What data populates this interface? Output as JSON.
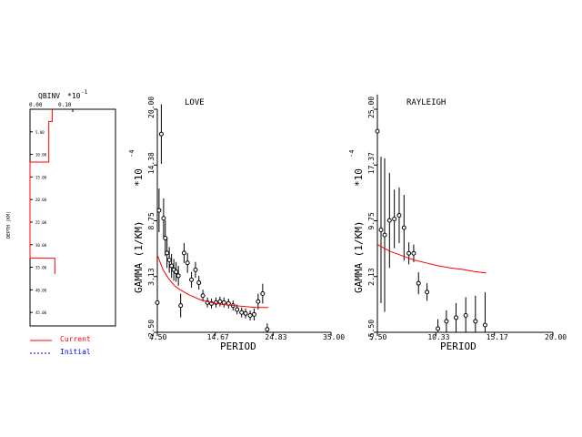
{
  "chart_data": [
    {
      "type": "line",
      "title": "QBINV",
      "scale_label": "*10",
      "scale_exp": "-1",
      "xtick_labels": [
        "0.00",
        "0.10"
      ],
      "ylabel": "DEPTH (KM)",
      "ytick_labels": [
        "5.00",
        "10.00",
        "15.00",
        "20.00",
        "25.00",
        "30.00",
        "35.00",
        "40.00",
        "45.00"
      ],
      "ylim_depth": [
        0,
        48
      ],
      "xlim": [
        0,
        0.2
      ],
      "series": [
        {
          "name": "Current",
          "color": "#ff0000",
          "points": [
            [
              0.052,
              0
            ],
            [
              0.052,
              2.7
            ],
            [
              0.044,
              2.7
            ],
            [
              0.044,
              11.7
            ],
            [
              0.0,
              11.7
            ],
            [
              0.0,
              33.0
            ],
            [
              0.058,
              33.0
            ],
            [
              0.058,
              36.5
            ]
          ]
        }
      ],
      "legend": [
        {
          "label": "Current",
          "color": "#ff0000",
          "style": "solid"
        },
        {
          "label": "Initial",
          "color": "#0000ff",
          "style": "dashed"
        }
      ]
    },
    {
      "type": "scatter",
      "title": "LOVE",
      "xlabel": "PERIOD",
      "ylabel": "GAMMA (1/KM)",
      "yscale_label": "*10",
      "yscale_exp": "-4",
      "xlim": [
        4.5,
        35.0
      ],
      "ylim": [
        -2.5,
        20.0
      ],
      "xtick_labels": [
        "4.50",
        "14.67",
        "24.83",
        "35.00"
      ],
      "ytick_labels": [
        "-2.50",
        "3.13",
        "8.75",
        "14.38",
        "20.00"
      ],
      "observed": [
        [
          4.5,
          0.5,
          1.5
        ],
        [
          4.8,
          9.8,
          2.2
        ],
        [
          5.2,
          17.5,
          3.0
        ],
        [
          5.6,
          9.0,
          2.0
        ],
        [
          5.9,
          7.0,
          1.8
        ],
        [
          6.2,
          5.5,
          1.5
        ],
        [
          6.6,
          4.8,
          1.3
        ],
        [
          7.0,
          4.2,
          1.2
        ],
        [
          7.4,
          3.8,
          1.1
        ],
        [
          7.8,
          3.6,
          1.0
        ],
        [
          8.2,
          3.2,
          1.0
        ],
        [
          8.6,
          0.2,
          1.2
        ],
        [
          9.2,
          5.5,
          1.0
        ],
        [
          9.8,
          4.5,
          1.0
        ],
        [
          10.5,
          2.8,
          0.8
        ],
        [
          11.2,
          3.8,
          0.8
        ],
        [
          11.8,
          2.5,
          0.7
        ],
        [
          12.5,
          1.2,
          0.6
        ],
        [
          13.3,
          0.5,
          0.5
        ],
        [
          14.0,
          0.4,
          0.5
        ],
        [
          14.8,
          0.5,
          0.5
        ],
        [
          15.5,
          0.6,
          0.5
        ],
        [
          16.2,
          0.5,
          0.5
        ],
        [
          17.0,
          0.4,
          0.5
        ],
        [
          17.8,
          0.2,
          0.5
        ],
        [
          18.5,
          -0.2,
          0.5
        ],
        [
          19.3,
          -0.5,
          0.5
        ],
        [
          20.0,
          -0.6,
          0.5
        ],
        [
          20.8,
          -0.8,
          0.5
        ],
        [
          21.5,
          -0.7,
          0.6
        ],
        [
          22.2,
          0.6,
          0.8
        ],
        [
          23.0,
          1.4,
          1.0
        ],
        [
          23.8,
          -2.2,
          0.6
        ]
      ],
      "predicted": [
        [
          4.5,
          5.3
        ],
        [
          5.5,
          3.8
        ],
        [
          6.5,
          2.9
        ],
        [
          7.5,
          2.2
        ],
        [
          8.5,
          1.8
        ],
        [
          10.0,
          1.3
        ],
        [
          12.0,
          0.8
        ],
        [
          14.0,
          0.5
        ],
        [
          16.0,
          0.3
        ],
        [
          18.0,
          0.2
        ],
        [
          20.0,
          0.1
        ],
        [
          22.0,
          0.0
        ],
        [
          24.0,
          0.0
        ]
      ]
    },
    {
      "type": "scatter",
      "title": "RAYLEIGH",
      "xlabel": "PERIOD",
      "ylabel": "GAMMA (1/KM)",
      "yscale_label": "*10",
      "yscale_exp": "-4",
      "xlim": [
        5.5,
        20.0
      ],
      "ylim": [
        -5.5,
        25.0
      ],
      "xtick_labels": [
        "5.50",
        "10.33",
        "15.17",
        "20.00"
      ],
      "ytick_labels": [
        "-5.50",
        "2.13",
        "9.75",
        "17.37",
        "25.00"
      ],
      "observed": [
        [
          5.5,
          22.0,
          5.0
        ],
        [
          5.8,
          8.5,
          10.0
        ],
        [
          6.1,
          7.8,
          10.5
        ],
        [
          6.5,
          9.8,
          6.5
        ],
        [
          6.9,
          10.0,
          4.0
        ],
        [
          7.3,
          10.5,
          3.8
        ],
        [
          7.7,
          8.8,
          4.5
        ],
        [
          8.1,
          5.3,
          1.5
        ],
        [
          8.5,
          5.3,
          1.2
        ],
        [
          8.9,
          1.2,
          1.5
        ],
        [
          9.6,
          0.0,
          1.2
        ],
        [
          10.5,
          -5.0,
          1.3
        ],
        [
          11.2,
          -4.0,
          1.5
        ],
        [
          12.0,
          -3.5,
          2.0
        ],
        [
          12.8,
          -3.2,
          2.5
        ],
        [
          13.6,
          -4.0,
          3.5
        ],
        [
          14.4,
          -4.5,
          4.5
        ]
      ],
      "predicted": [
        [
          5.5,
          6.5
        ],
        [
          6.5,
          5.6
        ],
        [
          7.5,
          5.0
        ],
        [
          8.5,
          4.4
        ],
        [
          9.5,
          4.0
        ],
        [
          10.5,
          3.6
        ],
        [
          11.5,
          3.3
        ],
        [
          12.5,
          3.1
        ],
        [
          13.5,
          2.8
        ],
        [
          14.5,
          2.6
        ]
      ]
    }
  ]
}
